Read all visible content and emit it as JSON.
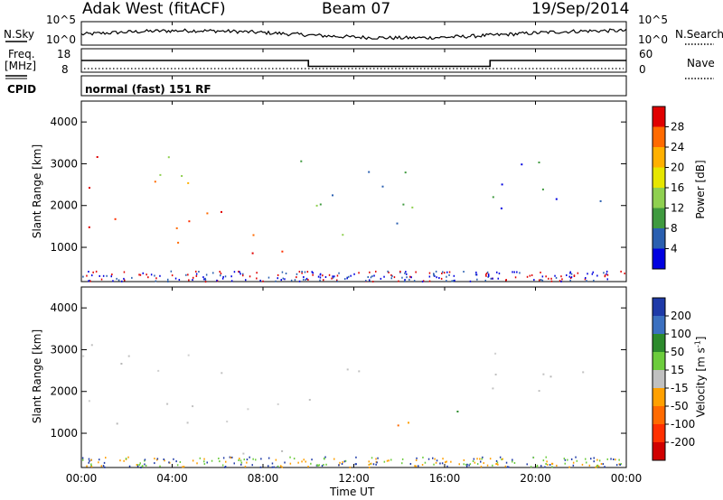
{
  "header": {
    "station": "Adak West (fitACF)",
    "beam": "Beam 07",
    "date": "19/Sep/2014"
  },
  "strip_panels": {
    "nsky_label": "N.Sky",
    "nsearch_label": "N.Search",
    "noise_ticks": [
      "10^5",
      "10^0"
    ],
    "freq_label_1": "Freq.",
    "freq_label_2": "[MHz]",
    "freq_ticks": [
      "18",
      "8"
    ],
    "nave_label": "Nave",
    "nave_ticks": [
      "60",
      "0"
    ],
    "cpid_label": "CPID",
    "cpid_value": "normal (fast) 151 RF",
    "freq_steps": [
      {
        "t_start": 0.0,
        "t_end": 10.0,
        "freq_mhz": 13.0
      },
      {
        "t_start": 10.0,
        "t_end": 18.0,
        "freq_mhz": 10.5
      },
      {
        "t_start": 18.0,
        "t_end": 24.0,
        "freq_mhz": 13.0
      }
    ]
  },
  "chart_data": [
    {
      "type": "heatmap",
      "ylabel": "Slant Range [km]",
      "yticks": [
        "4000",
        "3000",
        "2000",
        "1000"
      ],
      "ylim": [
        180,
        4500
      ],
      "xlim": [
        0,
        24
      ],
      "colorbar_label": "Power [dB]",
      "colorbar_ticks": [
        "28",
        "24",
        "20",
        "16",
        "12",
        "8",
        "4"
      ],
      "colorbar_colors": [
        "#e00000",
        "#ff6a00",
        "#ffb000",
        "#e6e600",
        "#8fd050",
        "#3f9a3f",
        "#2a5fb0",
        "#0000e0"
      ],
      "regions": [
        {
          "t0": 0.0,
          "t1": 6.5,
          "r0": 2300,
          "r1": 3200,
          "level": "medium"
        },
        {
          "t0": 0.0,
          "t1": 8.5,
          "r0": 1700,
          "r1": 1900,
          "level": "medium"
        },
        {
          "t0": 0.0,
          "t1": 9.5,
          "r0": 1100,
          "r1": 1700,
          "level": "high"
        },
        {
          "t0": 7.0,
          "t1": 9.3,
          "r0": 300,
          "r1": 1100,
          "level": "high"
        },
        {
          "t0": 9.5,
          "t1": 15.0,
          "r0": 1900,
          "r1": 3300,
          "level": "low"
        },
        {
          "t0": 11.0,
          "t1": 14.5,
          "r0": 1200,
          "r1": 1800,
          "level": "low"
        },
        {
          "t0": 18.0,
          "t1": 24.0,
          "r0": 1900,
          "r1": 3100,
          "level": "low"
        }
      ]
    },
    {
      "type": "heatmap",
      "ylabel": "Slant Range [km]",
      "yticks": [
        "4000",
        "3000",
        "2000",
        "1000"
      ],
      "ylim": [
        180,
        4500
      ],
      "xlim": [
        0,
        24
      ],
      "xlabel": "Time UT",
      "xticks": [
        "00:00",
        "04:00",
        "08:00",
        "12:00",
        "16:00",
        "20:00",
        "00:00"
      ],
      "colorbar_label": "Velocity [m s",
      "colorbar_label_sup": "-1",
      "colorbar_label_end": "]",
      "colorbar_ticks": [
        "200",
        "100",
        "50",
        "15",
        "-15",
        "-50",
        "-100",
        "-200"
      ],
      "colorbar_colors": [
        "#1e3aa8",
        "#3b70c0",
        "#2c8a2c",
        "#6ccc3c",
        "#c0c0c0",
        "#ffa000",
        "#ff6a00",
        "#ff3000",
        "#d00000"
      ],
      "regions": [
        {
          "t0": 0.0,
          "t1": 6.5,
          "r0": 2300,
          "r1": 3200,
          "level": "ground"
        },
        {
          "t0": 0.0,
          "t1": 9.5,
          "r0": 1100,
          "r1": 1900,
          "level": "ground"
        },
        {
          "t0": 7.0,
          "t1": 9.3,
          "r0": 500,
          "r1": 1100,
          "level": "ground"
        },
        {
          "t0": 9.5,
          "t1": 12.5,
          "r0": 1800,
          "r1": 2700,
          "level": "ground"
        },
        {
          "t0": 12.0,
          "t1": 15.0,
          "r0": 1200,
          "r1": 1700,
          "level": "negative"
        },
        {
          "t0": 16.0,
          "t1": 17.5,
          "r0": 1500,
          "r1": 2200,
          "level": "positive"
        },
        {
          "t0": 18.0,
          "t1": 24.0,
          "r0": 1900,
          "r1": 3000,
          "level": "ground"
        }
      ]
    }
  ]
}
